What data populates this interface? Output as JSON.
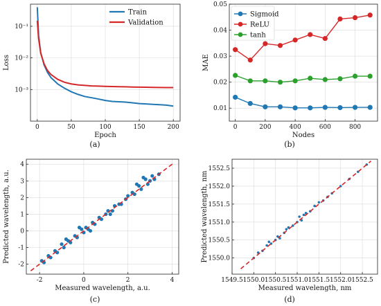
{
  "chart_data": [
    {
      "panel": "(a)",
      "type": "line",
      "xlabel": "Epoch",
      "ylabel": "Loss",
      "yscale": "log",
      "xlim": [
        -10,
        210
      ],
      "ylim": [
        0.0001,
        0.5
      ],
      "xticks": [
        0,
        50,
        100,
        150,
        200
      ],
      "yticks": [
        0.001,
        0.01,
        0.1
      ],
      "ytick_labels": [
        "10⁻³",
        "10⁻²",
        "10⁻¹"
      ],
      "grid": true,
      "legend": "top-right",
      "series": [
        {
          "name": "Train",
          "color": "#1f77b4",
          "x": [
            0,
            2,
            5,
            10,
            15,
            20,
            30,
            40,
            50,
            60,
            70,
            80,
            90,
            100,
            110,
            120,
            130,
            140,
            150,
            160,
            170,
            180,
            190,
            200
          ],
          "y": [
            0.4,
            0.05,
            0.015,
            0.006,
            0.0035,
            0.0024,
            0.0015,
            0.0011,
            0.00085,
            0.0007,
            0.0006,
            0.00055,
            0.0005,
            0.00045,
            0.00042,
            0.00041,
            0.0004,
            0.00038,
            0.00036,
            0.00035,
            0.00034,
            0.00033,
            0.00032,
            0.0003
          ]
        },
        {
          "name": "Validation",
          "color": "#d62728",
          "x": [
            0,
            2,
            5,
            10,
            15,
            20,
            30,
            40,
            50,
            60,
            70,
            80,
            90,
            100,
            110,
            120,
            130,
            140,
            150,
            160,
            170,
            180,
            190,
            200
          ],
          "y": [
            0.15,
            0.04,
            0.014,
            0.0065,
            0.004,
            0.003,
            0.0021,
            0.0017,
            0.0015,
            0.0014,
            0.00135,
            0.0013,
            0.00128,
            0.00126,
            0.00124,
            0.00123,
            0.00122,
            0.0012,
            0.00119,
            0.00118,
            0.00117,
            0.00116,
            0.00115,
            0.00115
          ]
        }
      ]
    },
    {
      "panel": "(b)",
      "type": "line",
      "xlabel": "Nodes",
      "ylabel": "MAE",
      "xlim": [
        -40,
        950
      ],
      "ylim": [
        0.005,
        0.05
      ],
      "xticks": [
        0,
        200,
        400,
        600,
        800
      ],
      "yticks": [
        0.01,
        0.02,
        0.03,
        0.04,
        0.05
      ],
      "ytick_labels": [
        "0.01",
        "0.02",
        "0.03",
        "0.04",
        "0.05"
      ],
      "grid": true,
      "legend": "top-left",
      "series": [
        {
          "name": "Sigmoid",
          "color": "#1f77b4",
          "x": [
            0,
            100,
            200,
            300,
            400,
            500,
            600,
            700,
            800,
            900
          ],
          "y": [
            0.0142,
            0.0118,
            0.0105,
            0.0105,
            0.0101,
            0.0101,
            0.0103,
            0.0102,
            0.0103,
            0.0103
          ]
        },
        {
          "name": "ReLU",
          "color": "#d62728",
          "x": [
            0,
            100,
            200,
            300,
            400,
            500,
            600,
            700,
            800,
            900
          ],
          "y": [
            0.0325,
            0.0285,
            0.0348,
            0.0341,
            0.0362,
            0.0383,
            0.0368,
            0.0443,
            0.0448,
            0.0458
          ]
        },
        {
          "name": "tanh",
          "color": "#2ca02c",
          "x": [
            0,
            100,
            200,
            300,
            400,
            500,
            600,
            700,
            800,
            900
          ],
          "y": [
            0.0226,
            0.0205,
            0.0205,
            0.02,
            0.0205,
            0.0215,
            0.021,
            0.0213,
            0.0223,
            0.0223
          ]
        }
      ]
    },
    {
      "panel": "(c)",
      "type": "scatter",
      "xlabel": "Measured wavelength, a.u.",
      "ylabel": "Predicted wavelength, a.u.",
      "xlim": [
        -2.6,
        4.3
      ],
      "ylim": [
        -2.6,
        4.3
      ],
      "xticks": [
        -2,
        0,
        2,
        4
      ],
      "yticks": [
        -2,
        -1,
        0,
        1,
        2,
        3,
        4
      ],
      "grid": true,
      "point_color": "#1f77b4",
      "reference_line": {
        "color": "#d62728",
        "style": "dashed",
        "x": [
          -2.4,
          4.1
        ],
        "y": [
          -2.4,
          4.1
        ]
      },
      "x": [
        -1.9,
        -1.8,
        -1.6,
        -1.5,
        -1.3,
        -1.2,
        -1.0,
        -0.9,
        -0.7,
        -0.6,
        -0.4,
        -0.3,
        -0.1,
        0.0,
        0.1,
        0.2,
        0.4,
        0.5,
        0.7,
        0.8,
        1.0,
        1.1,
        1.3,
        1.4,
        1.6,
        1.7,
        1.9,
        2.0,
        2.2,
        2.3,
        2.5,
        2.6,
        2.8,
        2.9,
        3.1,
        3.2,
        3.4,
        -0.8,
        -0.2,
        0.3,
        1.2,
        2.4,
        2.7,
        3.0
      ],
      "y": [
        -1.8,
        -1.9,
        -1.5,
        -1.6,
        -1.2,
        -1.3,
        -0.8,
        -1.0,
        -0.6,
        -0.7,
        -0.3,
        -0.4,
        0.1,
        -0.1,
        0.2,
        0.1,
        0.5,
        0.4,
        0.8,
        0.7,
        1.0,
        1.2,
        1.2,
        1.5,
        1.6,
        1.6,
        1.9,
        2.1,
        2.3,
        2.2,
        2.7,
        2.5,
        3.1,
        2.8,
        3.3,
        3.1,
        3.4,
        -0.5,
        0.2,
        0.0,
        1.0,
        2.8,
        3.2,
        3.0
      ]
    },
    {
      "panel": "(d)",
      "type": "scatter",
      "xlabel": "Measured wavelength, nm",
      "ylabel": "Predicted wavelength, nm",
      "xlim": [
        1549.5,
        1552.85
      ],
      "ylim": [
        1549.55,
        1552.75
      ],
      "xticks": [
        1549.5,
        1550.0,
        1550.5,
        1551.0,
        1551.5,
        1552.0,
        1552.5
      ],
      "xtick_labels": [
        "1549.5",
        "1550.0",
        "1550.5",
        "1551.0",
        "1551.5",
        "1552.0",
        "1552.5"
      ],
      "yticks": [
        1550.0,
        1550.5,
        1551.0,
        1551.5,
        1552.0,
        1552.5
      ],
      "ytick_labels": [
        "1550.0",
        "1550.5",
        "1551.0",
        "1551.5",
        "1552.0",
        "1552.5"
      ],
      "grid": true,
      "point_color": "#1f77b4",
      "reference_line": {
        "color": "#d62728",
        "style": "dashed",
        "x": [
          1549.7,
          1552.7
        ],
        "y": [
          1549.7,
          1552.7
        ]
      },
      "x": [
        1550.0,
        1550.1,
        1550.2,
        1550.3,
        1550.4,
        1550.5,
        1550.55,
        1550.6,
        1550.7,
        1550.8,
        1550.9,
        1551.0,
        1551.1,
        1551.15,
        1551.2,
        1551.3,
        1551.4,
        1551.5,
        1551.6,
        1551.7,
        1551.8,
        1552.0,
        1552.2,
        1552.4,
        1552.6,
        1550.35,
        1550.75,
        1551.05
      ],
      "y": [
        1550.0,
        1550.15,
        1550.2,
        1550.35,
        1550.4,
        1550.5,
        1550.6,
        1550.55,
        1550.7,
        1550.85,
        1550.9,
        1551.0,
        1551.05,
        1551.2,
        1551.25,
        1551.3,
        1551.45,
        1551.55,
        1551.6,
        1551.7,
        1551.8,
        1552.0,
        1552.2,
        1552.4,
        1552.6,
        1550.45,
        1550.8,
        1551.15
      ]
    }
  ]
}
